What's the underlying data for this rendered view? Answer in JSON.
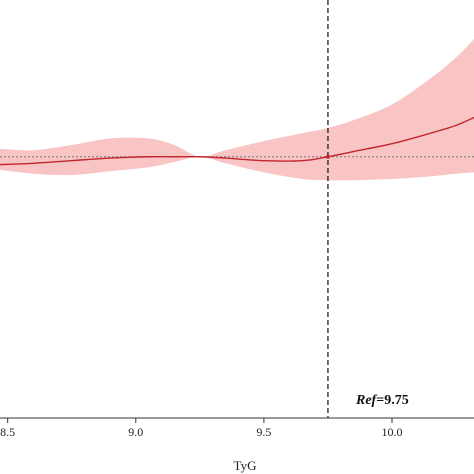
{
  "chart_data": {
    "type": "line",
    "title": "",
    "xlabel": "TyG",
    "ylabel": "",
    "xlim": [
      8.47,
      10.32
    ],
    "ylim": [
      0,
      1.6
    ],
    "x_ticks": [
      {
        "value": 8.5,
        "label": "8.5"
      },
      {
        "value": 9.0,
        "label": "9.0"
      },
      {
        "value": 9.5,
        "label": "9.5"
      },
      {
        "value": 10.0,
        "label": "10.0"
      }
    ],
    "reference_line_y": 1.0,
    "reference_x": {
      "value": 9.75,
      "label_prefix": "Ref",
      "label_value": "=9.75"
    },
    "series": [
      {
        "x": [
          8.47,
          8.6,
          8.75,
          8.9,
          9.05,
          9.15,
          9.25,
          9.35,
          9.5,
          9.65,
          9.75,
          9.85,
          10.0,
          10.15,
          10.25,
          10.32
        ],
        "y": [
          0.97,
          0.975,
          0.985,
          0.995,
          1.0,
          1.0,
          1.0,
          0.995,
          0.985,
          0.985,
          1.0,
          1.02,
          1.05,
          1.09,
          1.12,
          1.15
        ],
        "lower": [
          0.95,
          0.935,
          0.93,
          0.945,
          0.96,
          0.98,
          1.0,
          0.975,
          0.94,
          0.915,
          0.91,
          0.91,
          0.915,
          0.925,
          0.935,
          0.94
        ],
        "upper": [
          1.03,
          1.025,
          1.045,
          1.07,
          1.07,
          1.045,
          1.0,
          1.025,
          1.06,
          1.09,
          1.11,
          1.14,
          1.2,
          1.3,
          1.38,
          1.45
        ]
      }
    ],
    "colors": {
      "line": "#c0282d",
      "band": "#f8c4c4",
      "ref_line": "#111111",
      "null_line": "#777777",
      "axis": "#333333"
    },
    "grid": false,
    "legend": "none"
  }
}
